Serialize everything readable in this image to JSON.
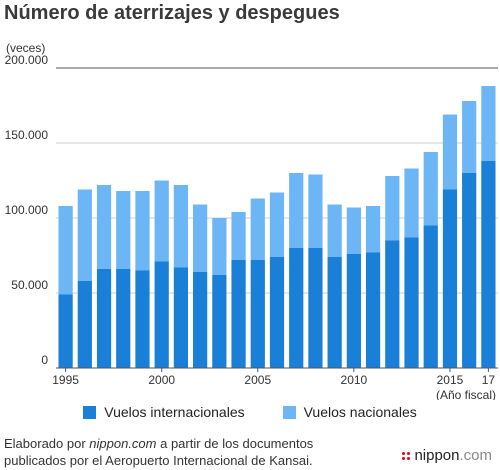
{
  "chart_data": {
    "type": "bar",
    "stacked": true,
    "title": "Número de aterrizajes y despegues",
    "ylabel": "(veces)",
    "xlabel": "(Año fiscal)",
    "ylim": [
      0,
      200000
    ],
    "y_ticks": [
      0,
      50000,
      100000,
      150000,
      200000
    ],
    "y_tick_labels": [
      "0",
      "50.000",
      "100.000",
      "150.000",
      "200.000"
    ],
    "categories": [
      1995,
      1996,
      1997,
      1998,
      1999,
      2000,
      2001,
      2002,
      2003,
      2004,
      2005,
      2006,
      2007,
      2008,
      2009,
      2010,
      2011,
      2012,
      2013,
      2014,
      2015,
      2016,
      2017
    ],
    "x_tick_labels": [
      {
        "index": 0,
        "label": "1995"
      },
      {
        "index": 5,
        "label": "2000"
      },
      {
        "index": 10,
        "label": "2005"
      },
      {
        "index": 15,
        "label": "2010"
      },
      {
        "index": 20,
        "label": "2015"
      },
      {
        "index": 22,
        "label": "17"
      }
    ],
    "series": [
      {
        "name": "Vuelos internacionales",
        "color": "#1a7fd6",
        "values": [
          49000,
          58000,
          66000,
          66000,
          65000,
          71000,
          67000,
          64000,
          62000,
          72000,
          72000,
          74000,
          80000,
          80000,
          74000,
          76000,
          77000,
          85000,
          87000,
          95000,
          119000,
          130000,
          138000
        ]
      },
      {
        "name": "Vuelos nacionales",
        "color": "#6db6f5",
        "values": [
          59000,
          61000,
          56000,
          52000,
          53000,
          54000,
          55000,
          45000,
          38000,
          32000,
          41000,
          43000,
          50000,
          49000,
          35000,
          31000,
          31000,
          43000,
          46000,
          49000,
          50000,
          48000,
          50000
        ]
      }
    ],
    "legend_position": "bottom"
  },
  "source": {
    "line1_prefix": "Elaborado por ",
    "line1_site": "nippon.com",
    "line1_suffix": " a partir de los documentos",
    "line2": "publicados por el Aeropuerto Internacional de Kansai."
  },
  "logo": {
    "name": "nippon",
    "suffix": ".com"
  }
}
